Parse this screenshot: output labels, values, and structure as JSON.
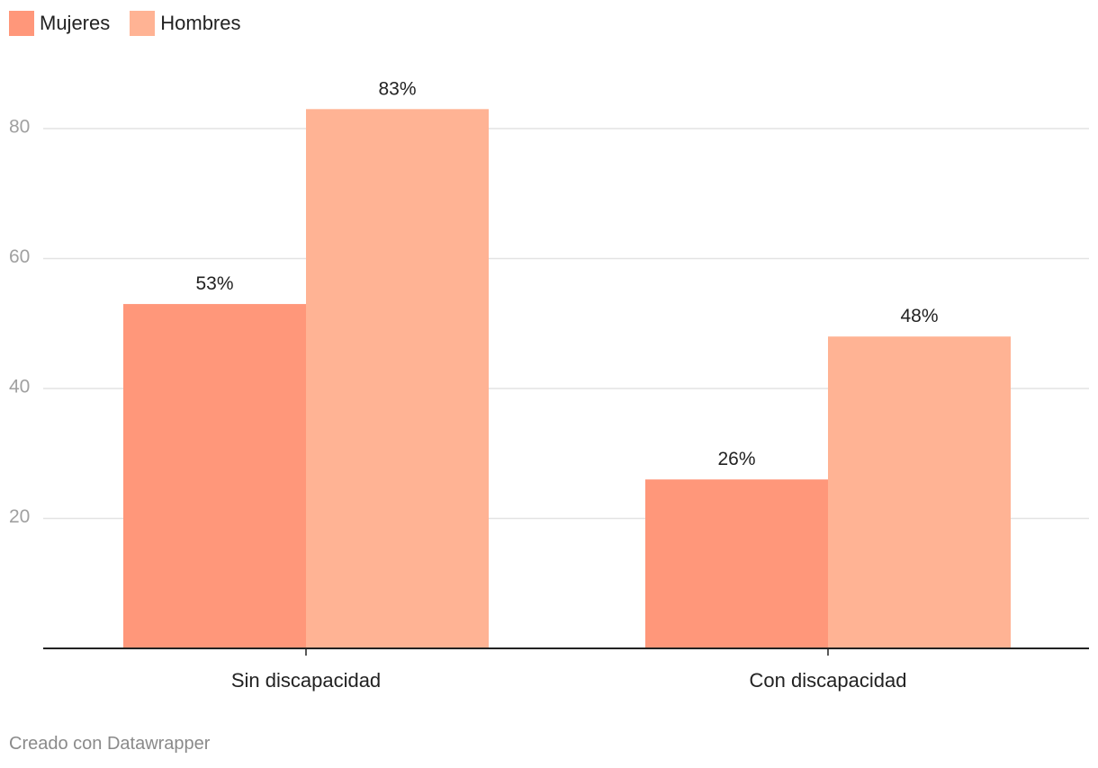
{
  "legend": [
    {
      "label": "Mujeres",
      "color": "#ff977a"
    },
    {
      "label": "Hombres",
      "color": "#ffb394"
    }
  ],
  "footer": {
    "credit": "Creado con Datawrapper"
  },
  "chart_data": {
    "type": "bar",
    "categories": [
      "Sin discapacidad",
      "Con discapacidad"
    ],
    "series": [
      {
        "name": "Mujeres",
        "values": [
          53,
          26
        ],
        "color": "#ff977a"
      },
      {
        "name": "Hombres",
        "values": [
          83,
          48
        ],
        "color": "#ffb394"
      }
    ],
    "value_suffix": "%",
    "y_ticks": [
      20,
      40,
      60,
      80
    ],
    "ylim": [
      0,
      83
    ],
    "grid": true,
    "legend_position": "top-left",
    "title": "",
    "xlabel": "",
    "ylabel": ""
  }
}
